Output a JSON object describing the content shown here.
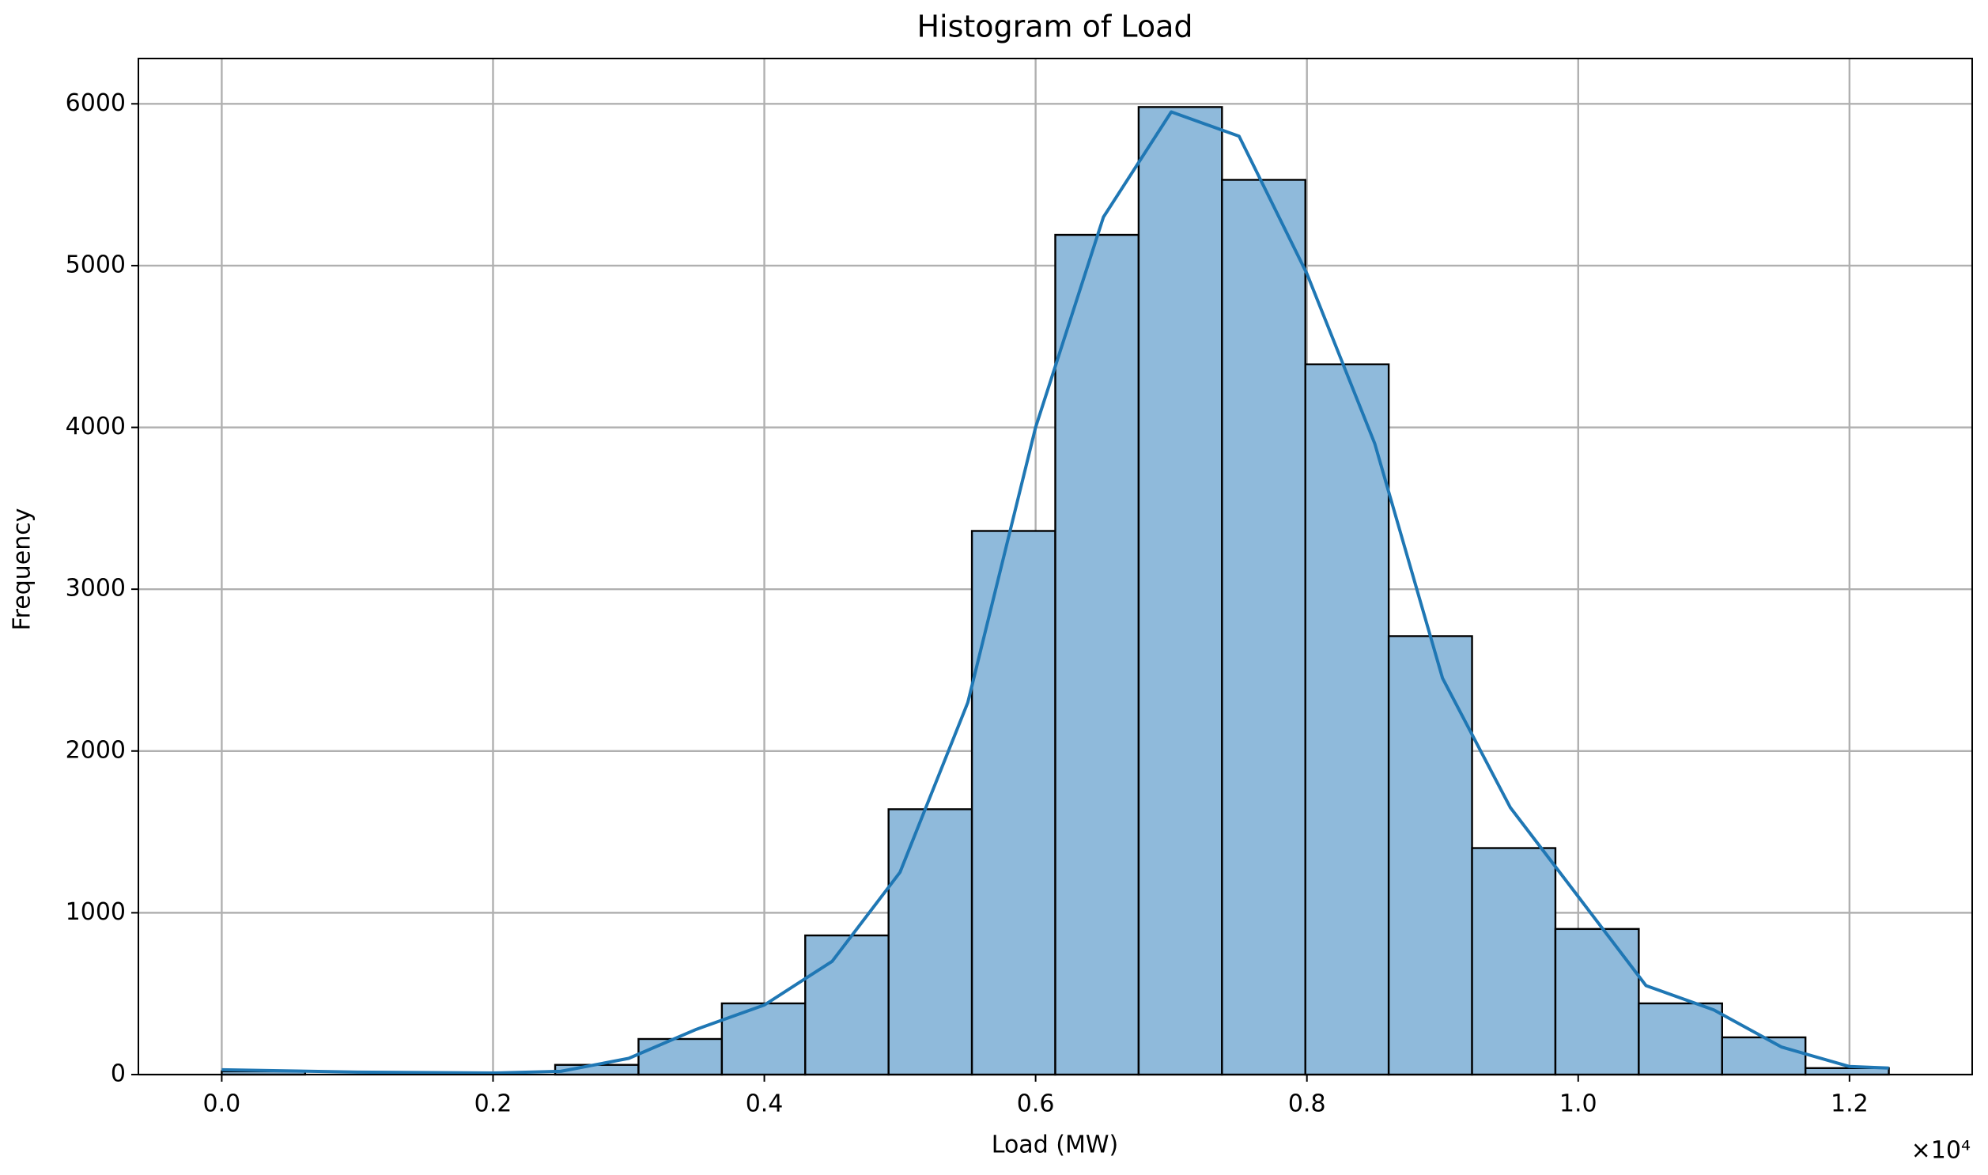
{
  "chart_data": {
    "type": "histogram",
    "title": "Histogram of Load",
    "x_label": "Load (MW)",
    "y_label": "Frequency",
    "x_offset_label": "×10⁴",
    "bins": [
      0,
      614.5,
      1229,
      1843.5,
      2458,
      3072.5,
      3687,
      4301.5,
      4916,
      5530.5,
      6145,
      6759.5,
      7374,
      7988.5,
      8603,
      9217.5,
      9832,
      10446.5,
      11061,
      11675.5,
      12290
    ],
    "counts": [
      20,
      0,
      0,
      0,
      60,
      220,
      440,
      860,
      1640,
      3360,
      5190,
      5980,
      5530,
      4390,
      2710,
      1400,
      900,
      440,
      230,
      40
    ],
    "color": "#8fbadb",
    "edgecolor": "#000000",
    "kde": {
      "color": "#1f77b4",
      "x": [
        0,
        1000,
        2000,
        2500,
        3000,
        3500,
        4000,
        4500,
        5000,
        5500,
        6000,
        6500,
        7000,
        7500,
        8000,
        8500,
        9000,
        9500,
        10000,
        10500,
        11000,
        11500,
        12000,
        12290
      ],
      "values": [
        30,
        15,
        10,
        20,
        100,
        280,
        430,
        700,
        1250,
        2300,
        4000,
        5300,
        5950,
        5800,
        4950,
        3900,
        2450,
        1650,
        1100,
        550,
        400,
        170,
        50,
        40
      ]
    },
    "xlim": [
      -614.5,
      12904.5
    ],
    "ylim": [
      0,
      6280
    ],
    "xticks": [
      {
        "value": 0,
        "label": "0.0"
      },
      {
        "value": 2000,
        "label": "0.2"
      },
      {
        "value": 4000,
        "label": "0.4"
      },
      {
        "value": 6000,
        "label": "0.6"
      },
      {
        "value": 8000,
        "label": "0.8"
      },
      {
        "value": 10000,
        "label": "1.0"
      },
      {
        "value": 12000,
        "label": "1.2"
      }
    ],
    "yticks": [
      0,
      1000,
      2000,
      3000,
      4000,
      5000,
      6000
    ],
    "grid": true
  }
}
